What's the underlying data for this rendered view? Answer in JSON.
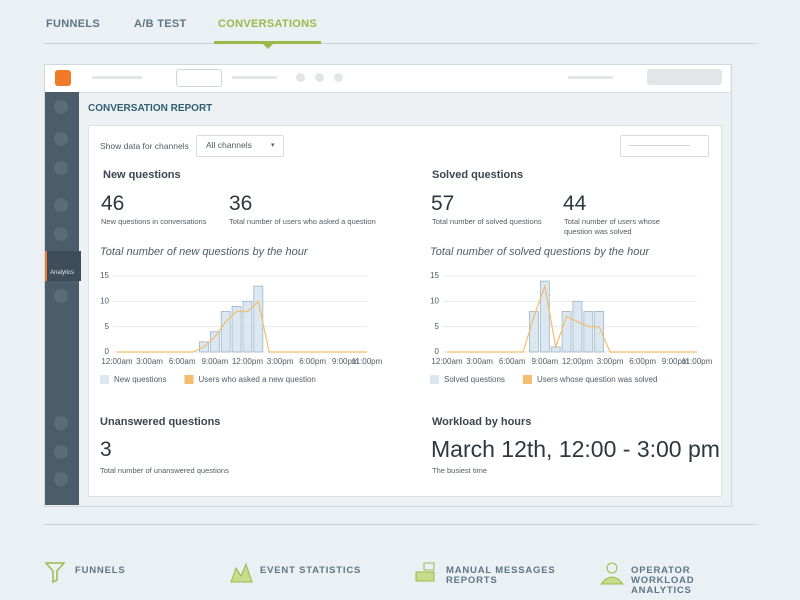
{
  "tabs": {
    "items": [
      "FUNNELS",
      "A/B TEST",
      "CONVERSATIONS"
    ],
    "active": 2
  },
  "sidebar": {
    "active_label": "Analytics"
  },
  "report": {
    "title": "CONVERSATION REPORT",
    "filter": {
      "label": "Show data for channels",
      "value": "All channels"
    },
    "new_questions": {
      "title": "New questions",
      "stats": [
        {
          "value": 46,
          "label": "New questions in conversations"
        },
        {
          "value": 36,
          "label": "Total number of users who asked a question"
        }
      ]
    },
    "solved_questions": {
      "title": "Solved questions",
      "stats": [
        {
          "value": 57,
          "label": "Total number of solved questions"
        },
        {
          "value": 44,
          "label": "Total number of users whose question was solved"
        }
      ]
    },
    "unanswered": {
      "title": "Unanswered questions",
      "value": 3,
      "label": "Total number of unanswered questions"
    },
    "workload": {
      "title": "Workload by hours",
      "value": "March 12th, 12:00 - 3:00 pm",
      "label": "The busiest time"
    }
  },
  "chart_data": [
    {
      "type": "bar",
      "title": "Total number of new questions by the hour",
      "categories": [
        "12:00am",
        null,
        null,
        "3:00am",
        null,
        null,
        "6:00am",
        null,
        null,
        "9:00am",
        null,
        null,
        "12:00pm",
        null,
        null,
        "3:00pm",
        null,
        null,
        "6:00pm",
        null,
        null,
        "9:00pm",
        null,
        "11:00pm"
      ],
      "series": [
        {
          "name": "New questions",
          "type": "bar",
          "color": "#dbe7f1",
          "values": [
            0,
            0,
            0,
            0,
            0,
            0,
            0,
            0,
            2,
            4,
            8,
            9,
            10,
            13,
            0,
            0,
            0,
            0,
            0,
            0,
            0,
            0,
            0,
            0
          ]
        },
        {
          "name": "Users who asked a new question",
          "type": "line",
          "color": "#f3bd6e",
          "values": [
            0,
            0,
            0,
            0,
            0,
            0,
            0,
            0,
            1,
            3,
            6,
            8,
            8,
            10,
            0,
            0,
            0,
            0,
            0,
            0,
            0,
            0,
            0,
            0
          ]
        }
      ],
      "ylim": [
        0,
        15
      ],
      "yticks": [
        0,
        5,
        10,
        15
      ],
      "grid": true
    },
    {
      "type": "bar",
      "title": "Total number of solved questions by the hour",
      "categories": [
        "12:00am",
        null,
        null,
        "3:00am",
        null,
        null,
        "6:00am",
        null,
        null,
        "9:00am",
        null,
        null,
        "12:00pm",
        null,
        null,
        "3:00pm",
        null,
        null,
        "6:00pm",
        null,
        null,
        "9:00pm",
        null,
        "11:00pm"
      ],
      "series": [
        {
          "name": "Solved questions",
          "type": "bar",
          "color": "#dbe7f1",
          "values": [
            0,
            0,
            0,
            0,
            0,
            0,
            0,
            0,
            8,
            14,
            1,
            8,
            10,
            8,
            8,
            0,
            0,
            0,
            0,
            0,
            0,
            0,
            0,
            0
          ]
        },
        {
          "name": "Users whose question was solved",
          "type": "line",
          "color": "#f3bd6e",
          "values": [
            0,
            0,
            0,
            0,
            0,
            0,
            0,
            0,
            7,
            13,
            1,
            7,
            6,
            5,
            5,
            0,
            0,
            0,
            0,
            0,
            0,
            0,
            0,
            0
          ]
        }
      ],
      "ylim": [
        0,
        15
      ],
      "yticks": [
        0,
        5,
        10,
        15
      ],
      "grid": true
    }
  ],
  "footer_links": [
    "FUNNELS",
    "EVENT STATISTICS",
    "MANUAL MESSAGES REPORTS",
    "OPERATOR WORKLOAD ANALYTICS"
  ]
}
